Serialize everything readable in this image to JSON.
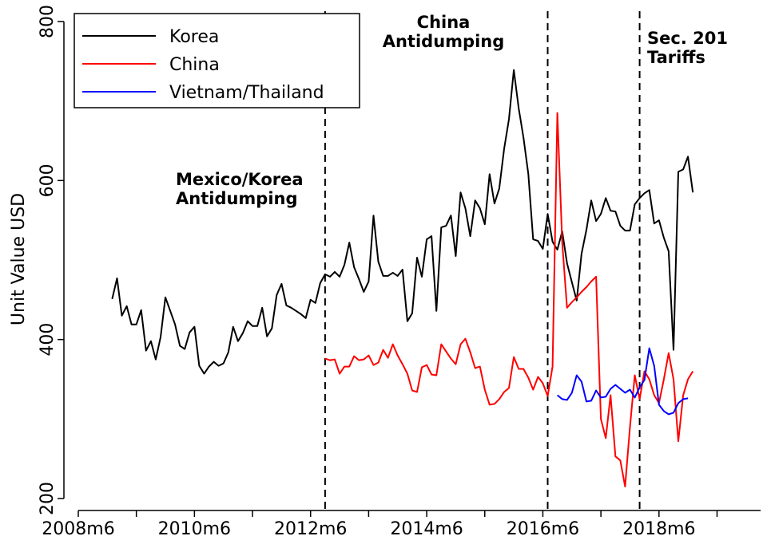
{
  "chart_data": {
    "type": "line",
    "y_label": "Unit Value USD",
    "x": [
      "2009m1",
      "2009m2",
      "2009m3",
      "2009m4",
      "2009m5",
      "2009m6",
      "2009m7",
      "2009m8",
      "2009m9",
      "2009m10",
      "2009m11",
      "2009m12",
      "2010m1",
      "2010m2",
      "2010m3",
      "2010m4",
      "2010m5",
      "2010m6",
      "2010m7",
      "2010m8",
      "2010m9",
      "2010m10",
      "2010m11",
      "2010m12",
      "2011m1",
      "2011m2",
      "2011m3",
      "2011m4",
      "2011m5",
      "2011m6",
      "2011m7",
      "2011m8",
      "2011m9",
      "2011m10",
      "2011m11",
      "2011m12",
      "2012m1",
      "2012m2",
      "2012m3",
      "2012m4",
      "2012m5",
      "2012m6",
      "2012m7",
      "2012m8",
      "2012m9",
      "2012m10",
      "2012m11",
      "2012m12",
      "2013m1",
      "2013m2",
      "2013m3",
      "2013m4",
      "2013m5",
      "2013m6",
      "2013m7",
      "2013m8",
      "2013m9",
      "2013m10",
      "2013m11",
      "2013m12",
      "2014m1",
      "2014m2",
      "2014m3",
      "2014m4",
      "2014m5",
      "2014m6",
      "2014m7",
      "2014m8",
      "2014m9",
      "2014m10",
      "2014m11",
      "2014m12",
      "2015m1",
      "2015m2",
      "2015m3",
      "2015m4",
      "2015m5",
      "2015m6",
      "2015m7",
      "2015m8",
      "2015m9",
      "2015m10",
      "2015m11",
      "2015m12",
      "2016m1",
      "2016m2",
      "2016m3",
      "2016m4",
      "2016m5",
      "2016m6",
      "2016m7",
      "2016m8",
      "2016m9",
      "2016m10",
      "2016m11",
      "2016m12",
      "2017m1",
      "2017m2",
      "2017m3",
      "2017m4",
      "2017m5",
      "2017m6",
      "2017m7",
      "2017m8",
      "2017m9",
      "2017m10",
      "2017m11",
      "2017m12",
      "2018m1",
      "2018m2",
      "2018m3",
      "2018m4",
      "2018m5",
      "2018m6",
      "2018m7",
      "2018m8",
      "2018m9",
      "2018m10",
      "2018m11",
      "2018m12",
      "2019m1"
    ],
    "series": [
      {
        "name": "Korea",
        "color": "#000000",
        "values": [
          451,
          477,
          430,
          442,
          419,
          419,
          437,
          386,
          398,
          375,
          403,
          453,
          436,
          419,
          392,
          388,
          409,
          416,
          367,
          357,
          366,
          372,
          367,
          370,
          384,
          416,
          398,
          408,
          423,
          417,
          417,
          440,
          404,
          414,
          456,
          470,
          443,
          440,
          436,
          432,
          427,
          450,
          446,
          471,
          482,
          479,
          485,
          479,
          494,
          522,
          491,
          476,
          460,
          473,
          556,
          498,
          480,
          480,
          484,
          480,
          488,
          423,
          433,
          503,
          479,
          526,
          530,
          436,
          541,
          543,
          556,
          505,
          585,
          565,
          530,
          575,
          565,
          545,
          608,
          571,
          590,
          640,
          677,
          739,
          691,
          654,
          608,
          526,
          524,
          514,
          558,
          523,
          513,
          536,
          496,
          472,
          449,
          508,
          538,
          575,
          549,
          558,
          578,
          562,
          561,
          543,
          537,
          537,
          570,
          578,
          584,
          588,
          546,
          550,
          528,
          511,
          387,
          611,
          614,
          630,
          585
        ]
      },
      {
        "name": "China",
        "color": "#ff0000",
        "values": [
          null,
          null,
          null,
          null,
          null,
          null,
          null,
          null,
          null,
          null,
          null,
          null,
          null,
          null,
          null,
          null,
          null,
          null,
          null,
          null,
          null,
          null,
          null,
          null,
          null,
          null,
          null,
          null,
          null,
          null,
          null,
          null,
          null,
          null,
          null,
          null,
          null,
          null,
          null,
          null,
          null,
          null,
          null,
          null,
          376,
          374,
          375,
          357,
          366,
          366,
          379,
          374,
          375,
          380,
          368,
          371,
          387,
          377,
          394,
          380,
          369,
          357,
          336,
          334,
          365,
          368,
          356,
          355,
          394,
          385,
          376,
          369,
          394,
          401,
          384,
          364,
          366,
          337,
          318,
          319,
          325,
          334,
          339,
          378,
          363,
          363,
          352,
          337,
          353,
          345,
          329,
          366,
          685,
          522,
          440,
          447,
          453,
          460,
          466,
          473,
          479,
          300,
          276,
          330,
          253,
          248,
          215,
          290,
          355,
          325,
          360,
          350,
          330,
          320,
          350,
          383,
          350,
          272,
          330,
          350,
          360
        ]
      },
      {
        "name": "Vietnam/Thailand",
        "color": "#0000ff",
        "values": [
          null,
          null,
          null,
          null,
          null,
          null,
          null,
          null,
          null,
          null,
          null,
          null,
          null,
          null,
          null,
          null,
          null,
          null,
          null,
          null,
          null,
          null,
          null,
          null,
          null,
          null,
          null,
          null,
          null,
          null,
          null,
          null,
          null,
          null,
          null,
          null,
          null,
          null,
          null,
          null,
          null,
          null,
          null,
          null,
          null,
          null,
          null,
          null,
          null,
          null,
          null,
          null,
          null,
          null,
          null,
          null,
          null,
          null,
          null,
          null,
          null,
          null,
          null,
          null,
          null,
          null,
          null,
          null,
          null,
          null,
          null,
          null,
          null,
          null,
          null,
          null,
          null,
          null,
          null,
          null,
          null,
          null,
          null,
          null,
          null,
          null,
          null,
          null,
          null,
          null,
          null,
          null,
          330,
          325,
          324,
          333,
          355,
          347,
          322,
          323,
          336,
          327,
          328,
          338,
          343,
          338,
          333,
          337,
          327,
          340,
          349,
          389,
          367,
          318,
          310,
          306,
          308,
          320,
          325,
          326,
          null
        ]
      }
    ],
    "xlim": [
      "2008m6",
      "2020m3"
    ],
    "xticks": [
      {
        "value": "2008m6",
        "label": "2008m6"
      },
      {
        "value": "2009m6",
        "label": null
      },
      {
        "value": "2010m6",
        "label": "2010m6"
      },
      {
        "value": "2011m6",
        "label": null
      },
      {
        "value": "2012m6",
        "label": "2012m6"
      },
      {
        "value": "2013m6",
        "label": null
      },
      {
        "value": "2014m6",
        "label": "2014m6"
      },
      {
        "value": "2015m6",
        "label": null
      },
      {
        "value": "2016m6",
        "label": "2016m6"
      },
      {
        "value": "2017m6",
        "label": null
      },
      {
        "value": "2018m6",
        "label": "2018m6"
      },
      {
        "value": "2019m6",
        "label": null
      }
    ],
    "ylim": [
      200,
      800
    ],
    "yticks": [
      200,
      400,
      600,
      800
    ],
    "grid": false,
    "legend": "top left",
    "events": [
      {
        "x": "2012m9",
        "text": [
          "Mexico/Korea",
          "Antidumping"
        ]
      },
      {
        "x": "2016m7",
        "text": [
          "China",
          "Antidumping"
        ]
      },
      {
        "x": "2018m2",
        "text": [
          "Sec. 201",
          "Tariffs"
        ]
      }
    ]
  }
}
